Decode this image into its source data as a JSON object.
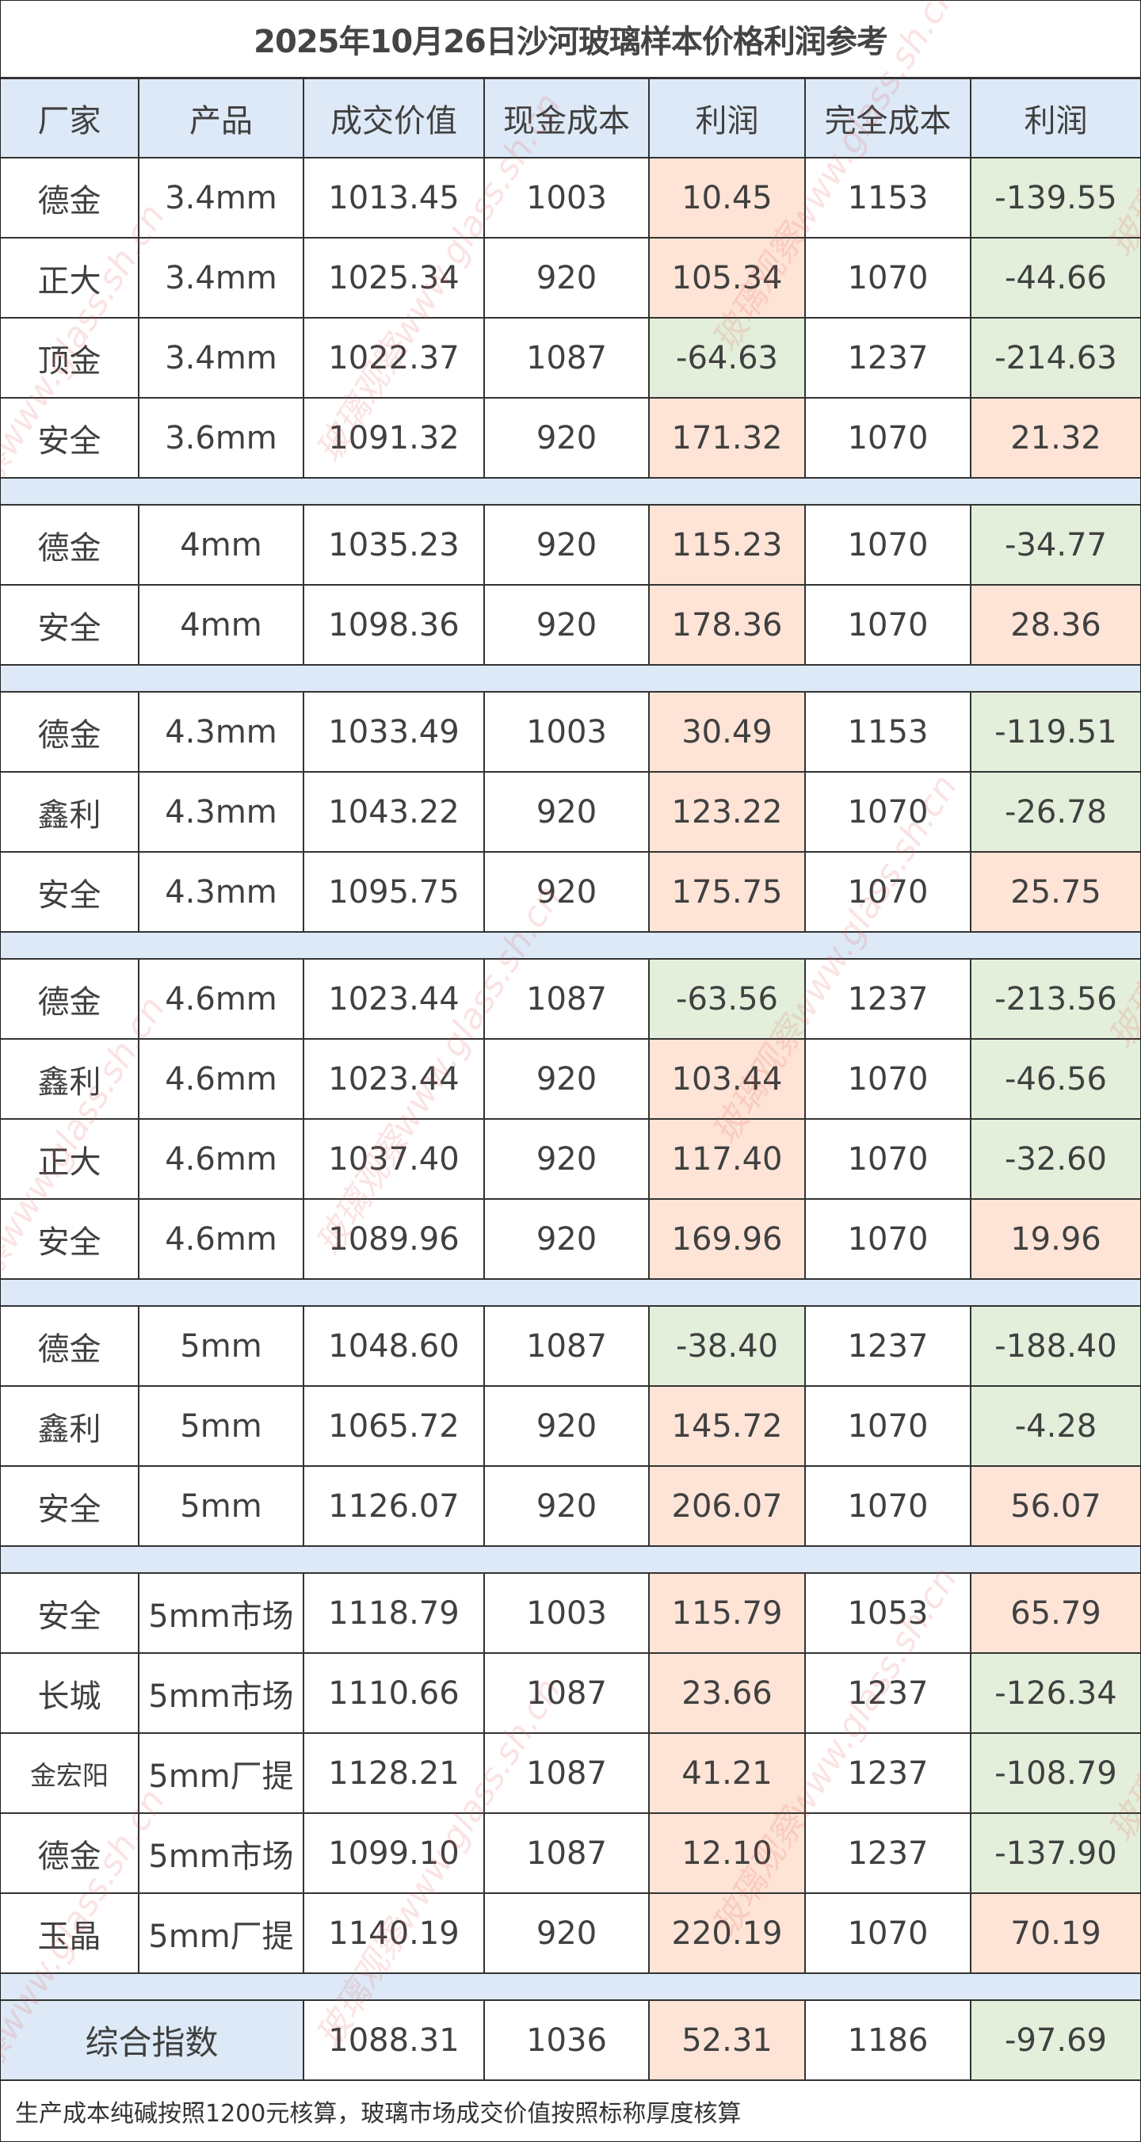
{
  "title": "2025年10月26日沙河玻璃样本价格利润参考",
  "headers": [
    "厂家",
    "产品",
    "成交价值",
    "现金成本",
    "利润",
    "完全成本",
    "利润"
  ],
  "groups": [
    [
      [
        "德金",
        "3.4mm",
        "1013.45",
        "1003",
        "10.45",
        "1153",
        "-139.55"
      ],
      [
        "正大",
        "3.4mm",
        "1025.34",
        "920",
        "105.34",
        "1070",
        "-44.66"
      ],
      [
        "顶金",
        "3.4mm",
        "1022.37",
        "1087",
        "-64.63",
        "1237",
        "-214.63"
      ],
      [
        "安全",
        "3.6mm",
        "1091.32",
        "920",
        "171.32",
        "1070",
        "21.32"
      ]
    ],
    [
      [
        "德金",
        "4mm",
        "1035.23",
        "920",
        "115.23",
        "1070",
        "-34.77"
      ],
      [
        "安全",
        "4mm",
        "1098.36",
        "920",
        "178.36",
        "1070",
        "28.36"
      ]
    ],
    [
      [
        "德金",
        "4.3mm",
        "1033.49",
        "1003",
        "30.49",
        "1153",
        "-119.51"
      ],
      [
        "鑫利",
        "4.3mm",
        "1043.22",
        "920",
        "123.22",
        "1070",
        "-26.78"
      ],
      [
        "安全",
        "4.3mm",
        "1095.75",
        "920",
        "175.75",
        "1070",
        "25.75"
      ]
    ],
    [
      [
        "德金",
        "4.6mm",
        "1023.44",
        "1087",
        "-63.56",
        "1237",
        "-213.56"
      ],
      [
        "鑫利",
        "4.6mm",
        "1023.44",
        "920",
        "103.44",
        "1070",
        "-46.56"
      ],
      [
        "正大",
        "4.6mm",
        "1037.40",
        "920",
        "117.40",
        "1070",
        "-32.60"
      ],
      [
        "安全",
        "4.6mm",
        "1089.96",
        "920",
        "169.96",
        "1070",
        "19.96"
      ]
    ],
    [
      [
        "德金",
        "5mm",
        "1048.60",
        "1087",
        "-38.40",
        "1237",
        "-188.40"
      ],
      [
        "鑫利",
        "5mm",
        "1065.72",
        "920",
        "145.72",
        "1070",
        "-4.28"
      ],
      [
        "安全",
        "5mm",
        "1126.07",
        "920",
        "206.07",
        "1070",
        "56.07"
      ]
    ],
    [
      [
        "安全",
        "5mm市场",
        "1118.79",
        "1003",
        "115.79",
        "1053",
        "65.79"
      ],
      [
        "长城",
        "5mm市场",
        "1110.66",
        "1087",
        "23.66",
        "1237",
        "-126.34"
      ],
      [
        "金宏阳",
        "5mm厂提",
        "1128.21",
        "1087",
        "41.21",
        "1237",
        "-108.79"
      ],
      [
        "德金",
        "5mm市场",
        "1099.10",
        "1087",
        "12.10",
        "1237",
        "-137.90"
      ],
      [
        "玉晶",
        "5mm厂提",
        "1140.19",
        "920",
        "220.19",
        "1070",
        "70.19"
      ]
    ]
  ],
  "summary": [
    "综合指数",
    "1088.31",
    "1036",
    "52.31",
    "1186",
    "-97.69"
  ],
  "footer": "生产成本纯碱按照1200元核算，玻璃市场成交价值按照标称厚度核算",
  "colors": {
    "profit_positive": "#fde4d6",
    "profit_negative": "#e3efda",
    "header_bg": "#dde9f6"
  },
  "watermark": "玻璃观察www.glass.sh.cn"
}
